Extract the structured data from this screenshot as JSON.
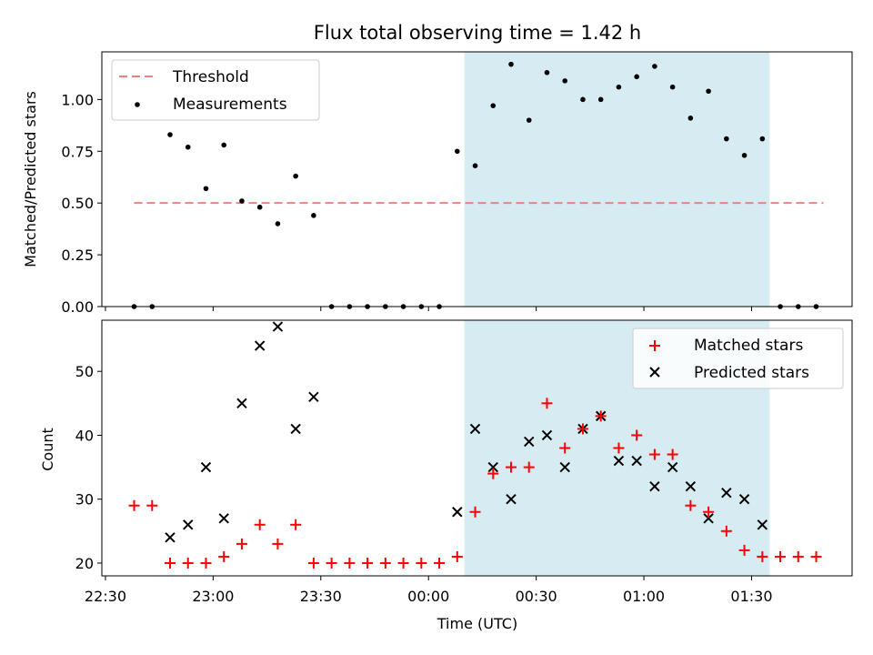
{
  "title": "Flux total observing time = 1.42 h",
  "xlabel": "Time (UTC)",
  "x_ticks": [
    "22:30",
    "23:00",
    "23:30",
    "00:00",
    "00:30",
    "01:00",
    "01:30"
  ],
  "colors": {
    "threshold": "#f08080",
    "measurements": "#000000",
    "matched": "#ff0000",
    "predicted": "#000000",
    "shade": "#add8e6"
  },
  "chart_data": [
    {
      "type": "scatter",
      "ylabel": "Matched/Predicted stars",
      "ylim": [
        0,
        1.23
      ],
      "y_ticks": [
        "0.00",
        "0.25",
        "0.50",
        "0.75",
        "1.00"
      ],
      "shaded_x_range": [
        "00:10",
        "01:35"
      ],
      "legend": {
        "position": "upper left",
        "items": [
          "Threshold",
          "Measurements"
        ]
      },
      "threshold": {
        "name": "Threshold",
        "y": 0.5,
        "x_range": [
          "22:38",
          "01:50"
        ]
      },
      "series": [
        {
          "name": "Measurements",
          "x": [
            "22:38",
            "22:43",
            "22:48",
            "22:53",
            "22:58",
            "23:03",
            "23:08",
            "23:13",
            "23:18",
            "23:23",
            "23:28",
            "23:33",
            "23:38",
            "23:43",
            "23:48",
            "23:53",
            "23:58",
            "00:03",
            "00:08",
            "00:13",
            "00:18",
            "00:23",
            "00:28",
            "00:33",
            "00:38",
            "00:43",
            "00:48",
            "00:53",
            "00:58",
            "01:03",
            "01:08",
            "01:13",
            "01:18",
            "01:23",
            "01:28",
            "01:33",
            "01:38",
            "01:43",
            "01:48"
          ],
          "y": [
            0.0,
            0.0,
            0.83,
            0.77,
            0.57,
            0.78,
            0.51,
            0.48,
            0.4,
            0.63,
            0.44,
            0.0,
            0.0,
            0.0,
            0.0,
            0.0,
            0.0,
            0.0,
            0.75,
            0.68,
            0.97,
            1.17,
            0.9,
            1.13,
            1.09,
            1.0,
            1.0,
            1.06,
            1.11,
            1.16,
            1.06,
            0.91,
            1.04,
            0.81,
            0.73,
            0.81,
            0.0,
            0.0,
            0.0
          ]
        }
      ]
    },
    {
      "type": "scatter",
      "ylabel": "Count",
      "ylim": [
        18,
        58
      ],
      "y_ticks": [
        "20",
        "30",
        "40",
        "50"
      ],
      "shaded_x_range": [
        "00:10",
        "01:35"
      ],
      "legend": {
        "position": "upper right",
        "items": [
          "Matched stars",
          "Predicted stars"
        ]
      },
      "series": [
        {
          "name": "Matched stars",
          "x": [
            "22:38",
            "22:43",
            "22:48",
            "22:53",
            "22:58",
            "23:03",
            "23:08",
            "23:13",
            "23:18",
            "23:23",
            "23:28",
            "23:33",
            "23:38",
            "23:43",
            "23:48",
            "23:53",
            "23:58",
            "00:03",
            "00:08",
            "00:13",
            "00:18",
            "00:23",
            "00:28",
            "00:33",
            "00:38",
            "00:43",
            "00:48",
            "00:53",
            "00:58",
            "01:03",
            "01:08",
            "01:13",
            "01:18",
            "01:23",
            "01:28",
            "01:33",
            "01:38",
            "01:43",
            "01:48"
          ],
          "y": [
            29,
            29,
            20,
            20,
            20,
            21,
            23,
            26,
            23,
            26,
            20,
            20,
            20,
            20,
            20,
            20,
            20,
            20,
            21,
            28,
            34,
            35,
            35,
            45,
            38,
            41,
            43,
            38,
            40,
            37,
            37,
            29,
            28,
            25,
            22,
            21,
            21,
            21,
            21
          ]
        },
        {
          "name": "Predicted stars",
          "x": [
            "22:48",
            "22:53",
            "22:58",
            "23:03",
            "23:08",
            "23:13",
            "23:18",
            "23:23",
            "23:28",
            "00:08",
            "00:13",
            "00:18",
            "00:23",
            "00:28",
            "00:33",
            "00:38",
            "00:43",
            "00:48",
            "00:53",
            "00:58",
            "01:03",
            "01:08",
            "01:13",
            "01:18",
            "01:23",
            "01:28",
            "01:33"
          ],
          "y": [
            24,
            26,
            35,
            27,
            45,
            54,
            57,
            41,
            46,
            28,
            41,
            35,
            30,
            39,
            40,
            35,
            41,
            43,
            36,
            36,
            32,
            35,
            32,
            27,
            31,
            30,
            26
          ]
        }
      ]
    }
  ]
}
